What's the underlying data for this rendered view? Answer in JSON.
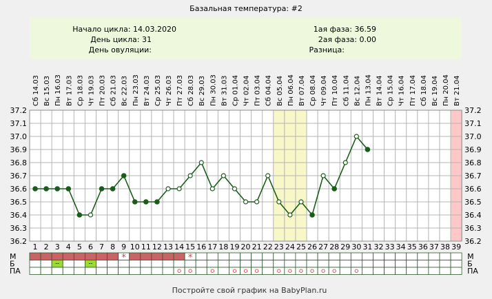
{
  "header": {
    "title": "Базальная температура: #2",
    "cycle_start": "Начало цикла: 14.03.2020",
    "cycle_day": "День цикла: 31",
    "ovulation_day": "День овуляции:",
    "phase1": "1ая фаза: 36.59",
    "phase2": "2ая фаза: 0.00",
    "difference": "Разница:"
  },
  "footer": "Постройте свой график на BabyPlan.ru",
  "colors": {
    "line": "#1a5c1a",
    "highlight": "#f7f7c8",
    "last_day": "#ffc8c8",
    "menses": "#c86464",
    "b_mark": "#99dd33",
    "pa_mark": "#dd5555",
    "header_bg": "#eef8dc",
    "plot_bg": "#ffffff"
  },
  "chart_data": {
    "type": "line",
    "title": "Базальная температура: #2",
    "days": [
      1,
      2,
      3,
      4,
      5,
      6,
      7,
      8,
      9,
      10,
      11,
      12,
      13,
      14,
      15,
      16,
      17,
      18,
      19,
      20,
      21,
      22,
      23,
      24,
      25,
      26,
      27,
      28,
      29,
      30,
      31,
      32,
      33,
      34,
      35,
      36,
      37,
      38,
      39
    ],
    "dates": [
      "Сб 14.03",
      "Вс 15.03",
      "Пн 16.03",
      "Вт 17.03",
      "Ср 18.03",
      "Чт 19.03",
      "Пт 20.03",
      "Сб 21.03",
      "Вс 22.03",
      "Пн 23.03",
      "Вт 24.03",
      "Ср 25.03",
      "Чт 26.03",
      "Пт 27.03",
      "Сб 28.03",
      "Вс 29.03",
      "Пн 30.03",
      "Вт 31.03",
      "Ср 01.04",
      "Чт 02.04",
      "Пт 03.04",
      "Сб 04.04",
      "Вс 05.04",
      "Пн 06.04",
      "Вт 07.04",
      "Ср 08.04",
      "Чт 09.04",
      "Пт 10.04",
      "Сб 11.04",
      "Вс 12.04",
      "Пн 13.04",
      "Вт 14.04",
      "Ср 15.04",
      "Чт 16.04",
      "Пт 17.04",
      "Сб 18.04",
      "Вс 19.04",
      "Пн 20.04",
      "Вт 21.04"
    ],
    "temperatures": [
      36.6,
      36.6,
      36.6,
      36.6,
      36.4,
      36.4,
      36.6,
      36.6,
      36.7,
      36.5,
      36.5,
      36.5,
      36.6,
      36.6,
      36.7,
      36.8,
      36.6,
      36.7,
      36.6,
      36.5,
      36.5,
      36.7,
      36.5,
      36.4,
      36.5,
      36.4,
      36.7,
      36.6,
      36.8,
      37.0,
      36.9
    ],
    "point_style": [
      "filled",
      "filled",
      "filled",
      "filled",
      "filled",
      "open",
      "filled",
      "filled",
      "filled",
      "filled",
      "filled",
      "filled",
      "open",
      "open",
      "open",
      "open",
      "open",
      "open",
      "open",
      "open",
      "open",
      "open",
      "open",
      "open",
      "open",
      "filled",
      "open",
      "filled",
      "open",
      "open",
      "filled"
    ],
    "ylim": [
      36.2,
      37.2
    ],
    "yticks": [
      "36.2",
      "36.3",
      "36.4",
      "36.5",
      "36.6",
      "36.7",
      "36.8",
      "36.9",
      "37.0",
      "37.1",
      "37.2"
    ],
    "highlight_days": [
      23,
      25
    ],
    "last_day_highlight": 39,
    "grid": true,
    "rows": [
      {
        "label": "М",
        "menses_days": [
          1,
          2,
          3,
          4,
          5,
          6,
          7,
          8,
          10,
          11,
          12,
          13,
          14
        ],
        "star_days": [
          9,
          15
        ]
      },
      {
        "label": "Б",
        "marked_days": [
          3,
          6
        ],
        "mark": "--"
      },
      {
        "label": "ПА",
        "marked_days": [
          14,
          15,
          17,
          19,
          20,
          21,
          23,
          24,
          25,
          26,
          27,
          28,
          30
        ],
        "mark": "o"
      }
    ]
  }
}
